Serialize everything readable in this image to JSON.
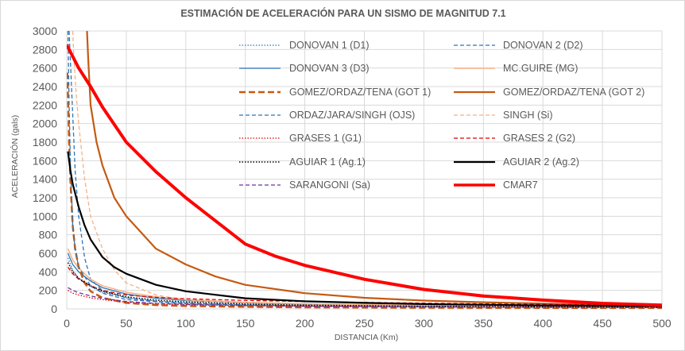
{
  "chart_data": {
    "type": "line",
    "title": "ESTIMACIÓN DE ACELERACIÓN PARA UN SISMO DE MAGNITUD 7.1",
    "xlabel": "DISTANCIA (Km)",
    "ylabel": "ACELERACIÓN (gals)",
    "xlim": [
      0,
      500
    ],
    "ylim": [
      0,
      3000
    ],
    "xticks": [
      0,
      50,
      100,
      150,
      200,
      250,
      300,
      350,
      400,
      450,
      500
    ],
    "yticks": [
      0,
      200,
      400,
      600,
      800,
      1000,
      1200,
      1400,
      1600,
      1800,
      2000,
      2200,
      2400,
      2600,
      2800,
      3000
    ],
    "grid": true,
    "legend_position": "top-right",
    "series": [
      {
        "name": "DONOVAN 1 (D1)",
        "color": "#2e75b6",
        "style": "dotted",
        "width": 1.3,
        "points": [
          [
            1,
            550
          ],
          [
            5,
            420
          ],
          [
            10,
            330
          ],
          [
            20,
            240
          ],
          [
            30,
            180
          ],
          [
            50,
            120
          ],
          [
            75,
            85
          ],
          [
            100,
            65
          ],
          [
            150,
            45
          ],
          [
            200,
            35
          ],
          [
            300,
            25
          ],
          [
            400,
            20
          ],
          [
            500,
            16
          ]
        ]
      },
      {
        "name": "DONOVAN 2 (D2)",
        "color": "#2e75b6",
        "style": "dashed",
        "width": 1.3,
        "points": [
          [
            2,
            3000
          ],
          [
            3,
            2700
          ],
          [
            5,
            2100
          ],
          [
            7,
            1500
          ],
          [
            10,
            1000
          ],
          [
            15,
            550
          ],
          [
            20,
            320
          ],
          [
            30,
            200
          ],
          [
            50,
            120
          ],
          [
            75,
            80
          ],
          [
            100,
            60
          ],
          [
            150,
            42
          ],
          [
            200,
            33
          ],
          [
            300,
            24
          ],
          [
            400,
            18
          ],
          [
            500,
            15
          ]
        ]
      },
      {
        "name": "DONOVAN 3 (D3)",
        "color": "#2e75b6",
        "style": "solid",
        "width": 1.3,
        "points": [
          [
            1,
            600
          ],
          [
            5,
            480
          ],
          [
            10,
            400
          ],
          [
            20,
            300
          ],
          [
            30,
            230
          ],
          [
            50,
            160
          ],
          [
            75,
            115
          ],
          [
            100,
            90
          ],
          [
            150,
            65
          ],
          [
            200,
            50
          ],
          [
            300,
            37
          ],
          [
            400,
            30
          ],
          [
            500,
            25
          ]
        ]
      },
      {
        "name": "MC.GUIRE (MG)",
        "color": "#f4b183",
        "style": "solid",
        "width": 1.5,
        "points": [
          [
            1,
            650
          ],
          [
            5,
            530
          ],
          [
            10,
            440
          ],
          [
            20,
            320
          ],
          [
            30,
            250
          ],
          [
            50,
            180
          ],
          [
            75,
            130
          ],
          [
            100,
            100
          ],
          [
            150,
            72
          ],
          [
            200,
            55
          ],
          [
            300,
            40
          ],
          [
            400,
            31
          ],
          [
            500,
            25
          ]
        ]
      },
      {
        "name": "GOMEZ/ORDAZ/TENA  (GOT 1)",
        "color": "#c55a11",
        "style": "longdash",
        "width": 2.5,
        "points": [
          [
            0.5,
            2550
          ],
          [
            1,
            2300
          ],
          [
            2,
            1800
          ],
          [
            3,
            1400
          ],
          [
            5,
            900
          ],
          [
            7,
            650
          ],
          [
            10,
            450
          ],
          [
            15,
            280
          ],
          [
            20,
            190
          ],
          [
            30,
            120
          ],
          [
            50,
            65
          ],
          [
            75,
            42
          ],
          [
            100,
            32
          ],
          [
            150,
            22
          ],
          [
            200,
            17
          ],
          [
            300,
            13
          ],
          [
            400,
            11
          ],
          [
            500,
            10
          ]
        ]
      },
      {
        "name": "GOMEZ/ORDAZ/TENA  (GOT 2)",
        "color": "#c55a11",
        "style": "solid",
        "width": 2.2,
        "points": [
          [
            17,
            3000
          ],
          [
            18,
            2700
          ],
          [
            20,
            2200
          ],
          [
            25,
            1800
          ],
          [
            30,
            1550
          ],
          [
            40,
            1200
          ],
          [
            50,
            1000
          ],
          [
            75,
            650
          ],
          [
            100,
            480
          ],
          [
            125,
            350
          ],
          [
            150,
            260
          ],
          [
            200,
            170
          ],
          [
            250,
            120
          ],
          [
            300,
            90
          ],
          [
            350,
            72
          ],
          [
            400,
            58
          ],
          [
            450,
            45
          ],
          [
            500,
            35
          ]
        ]
      },
      {
        "name": "ORDAZ/JARA/SINGH  (OJS)",
        "color": "#2e75b6",
        "style": "dashed",
        "width": 1.3,
        "points": [
          [
            1,
            3000
          ],
          [
            2,
            2200
          ],
          [
            3,
            1600
          ],
          [
            5,
            900
          ],
          [
            7,
            650
          ],
          [
            10,
            450
          ],
          [
            20,
            250
          ],
          [
            30,
            170
          ],
          [
            50,
            100
          ],
          [
            100,
            55
          ],
          [
            200,
            30
          ],
          [
            300,
            22
          ],
          [
            400,
            17
          ],
          [
            500,
            14
          ]
        ]
      },
      {
        "name": "SINGH (Si)",
        "color": "#f4b183",
        "style": "dashed",
        "width": 1.3,
        "points": [
          [
            5,
            3000
          ],
          [
            6,
            2700
          ],
          [
            8,
            2300
          ],
          [
            10,
            2000
          ],
          [
            15,
            1400
          ],
          [
            20,
            1000
          ],
          [
            30,
            650
          ],
          [
            40,
            420
          ],
          [
            50,
            280
          ],
          [
            75,
            150
          ],
          [
            100,
            95
          ],
          [
            150,
            60
          ],
          [
            200,
            42
          ],
          [
            300,
            28
          ],
          [
            400,
            20
          ],
          [
            500,
            16
          ]
        ]
      },
      {
        "name": "GRASES 1 (G1)",
        "color": "#e00000",
        "style": "dotted",
        "width": 1.3,
        "points": [
          [
            1,
            200
          ],
          [
            5,
            170
          ],
          [
            10,
            150
          ],
          [
            20,
            120
          ],
          [
            30,
            100
          ],
          [
            50,
            72
          ],
          [
            75,
            55
          ],
          [
            100,
            45
          ],
          [
            150,
            33
          ],
          [
            200,
            27
          ],
          [
            300,
            20
          ],
          [
            400,
            17
          ],
          [
            500,
            15
          ]
        ]
      },
      {
        "name": "GRASES 2 (G2)",
        "color": "#e00000",
        "style": "dashed",
        "width": 1.3,
        "points": [
          [
            1,
            450
          ],
          [
            5,
            380
          ],
          [
            10,
            320
          ],
          [
            20,
            250
          ],
          [
            30,
            200
          ],
          [
            50,
            150
          ],
          [
            75,
            125
          ],
          [
            100,
            110
          ],
          [
            150,
            92
          ],
          [
            200,
            80
          ],
          [
            250,
            70
          ],
          [
            300,
            62
          ],
          [
            350,
            55
          ],
          [
            400,
            50
          ],
          [
            450,
            45
          ],
          [
            500,
            40
          ]
        ]
      },
      {
        "name": "AGUIAR 1  (Ag.1)",
        "color": "#000000",
        "style": "dotted",
        "width": 1.5,
        "points": [
          [
            1,
            500
          ],
          [
            5,
            400
          ],
          [
            10,
            330
          ],
          [
            20,
            250
          ],
          [
            30,
            190
          ],
          [
            50,
            130
          ],
          [
            75,
            95
          ],
          [
            100,
            75
          ],
          [
            150,
            52
          ],
          [
            200,
            40
          ],
          [
            300,
            29
          ],
          [
            400,
            23
          ],
          [
            500,
            20
          ]
        ]
      },
      {
        "name": "AGUIAR 2  (Ag.2)",
        "color": "#000000",
        "style": "solid",
        "width": 2.2,
        "points": [
          [
            1,
            1700
          ],
          [
            3,
            1500
          ],
          [
            5,
            1350
          ],
          [
            10,
            1100
          ],
          [
            15,
            900
          ],
          [
            20,
            750
          ],
          [
            30,
            560
          ],
          [
            40,
            450
          ],
          [
            50,
            380
          ],
          [
            75,
            260
          ],
          [
            100,
            190
          ],
          [
            150,
            115
          ],
          [
            200,
            82
          ],
          [
            250,
            65
          ],
          [
            300,
            52
          ],
          [
            400,
            38
          ],
          [
            500,
            30
          ]
        ]
      },
      {
        "name": "SARANGONI  (Sa)",
        "color": "#7030a0",
        "style": "dashed",
        "width": 1.3,
        "points": [
          [
            1,
            230
          ],
          [
            5,
            200
          ],
          [
            10,
            175
          ],
          [
            20,
            140
          ],
          [
            30,
            115
          ],
          [
            50,
            80
          ],
          [
            75,
            60
          ],
          [
            100,
            50
          ],
          [
            150,
            37
          ],
          [
            200,
            30
          ],
          [
            300,
            22
          ],
          [
            400,
            18
          ],
          [
            500,
            15
          ]
        ]
      },
      {
        "name": "CMAR7",
        "color": "#ff0000",
        "style": "solid",
        "width": 4,
        "points": [
          [
            0,
            2850
          ],
          [
            10,
            2600
          ],
          [
            20,
            2400
          ],
          [
            30,
            2180
          ],
          [
            50,
            1800
          ],
          [
            75,
            1480
          ],
          [
            100,
            1200
          ],
          [
            125,
            950
          ],
          [
            150,
            700
          ],
          [
            175,
            570
          ],
          [
            200,
            470
          ],
          [
            250,
            320
          ],
          [
            300,
            210
          ],
          [
            350,
            140
          ],
          [
            400,
            95
          ],
          [
            450,
            60
          ],
          [
            500,
            40
          ]
        ]
      }
    ]
  }
}
